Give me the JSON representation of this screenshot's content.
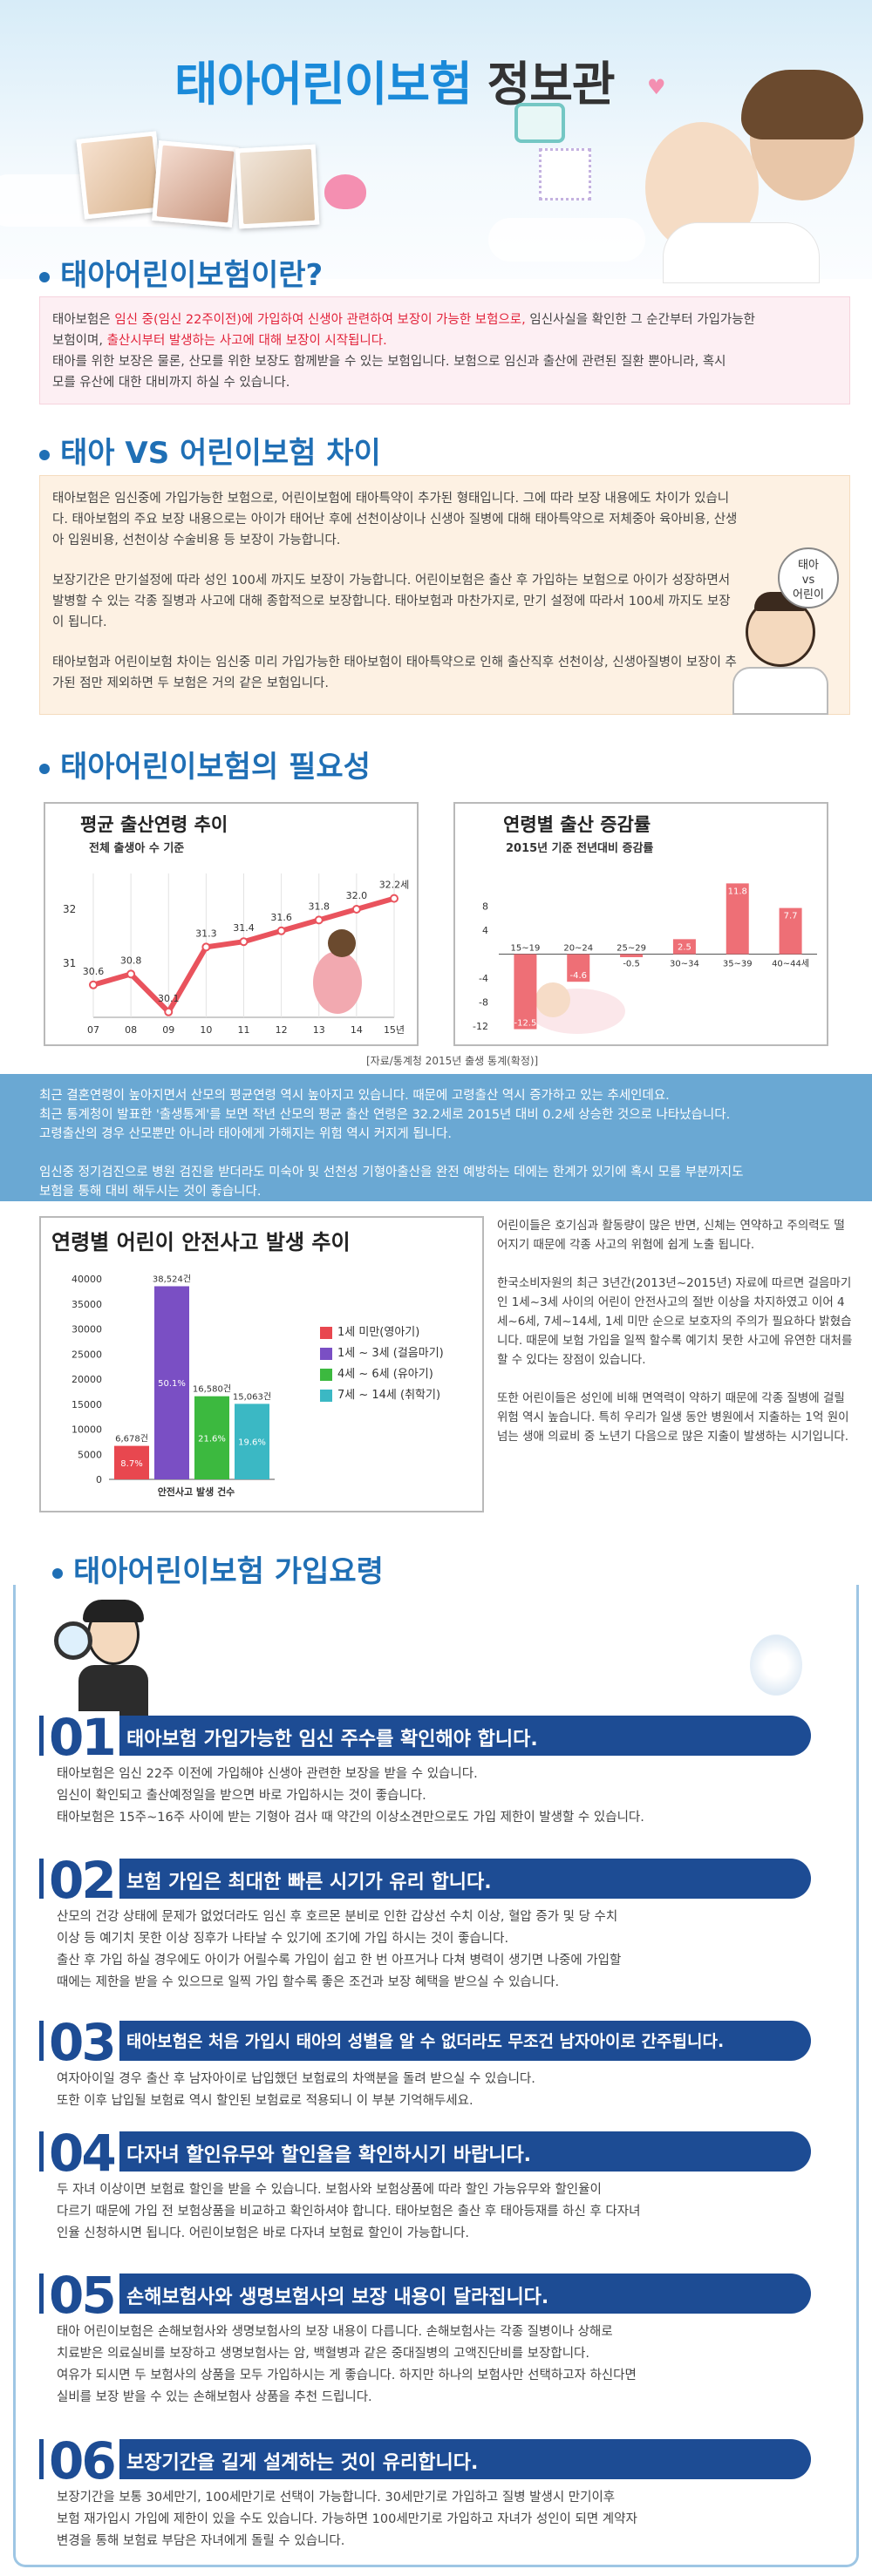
{
  "header": {
    "title_main": "태아어린이보험",
    "title_tail": " 정보관",
    "icon_tag": "baby-face-icon"
  },
  "sec1": {
    "title": "태아어린이보험이란?",
    "p1_a": "태아보험은 ",
    "p1_red1": "임신 중(임신 22주이전)에 가입하여 신생아 관련하여 보장이 가능한 보험으로,",
    "p1_b": " 임신사실을 확인한 그 순간부터 가입가능한",
    "p2_a": "보험이며, ",
    "p2_red": "출산시부터 발생하는 사고에 대해 보장이 시작됩니다.",
    "p3": "태아를 위한 보장은 물론, 산모를 위한 보장도 함께받을 수 있는 보험입니다. 보험으로 임신과 출산에 관련된 질환 뿐아니라, 혹시",
    "p4": "모를 유산에 대한 대비까지 하실 수 있습니다."
  },
  "sec2": {
    "title": "태아 VS 어린이보험 차이",
    "para1": "태아보험은 임신중에 가입가능한 보험으로, 어린이보험에 태아특약이 추가된 형태입니다. 그에 따라 보장 내용에도 차이가 있습니다. 태아보험의 주요 보장 내용으로는 아이가 태어난 후에 선천이상이나 신생아 질병에 대해 태아특약으로 저체중아 육아비용, 산생아 입원비용, 선천이상 수술비용 등 보장이 가능합니다.",
    "para2": "보장기간은 만기설정에 따라 성인 100세 까지도 보장이 가능합니다. 어린이보험은 출산 후 가입하는 보험으로 아이가 성장하면서 발병할 수 있는 각종 질병과 사고에 대해 종합적으로 보장합니다. 태아보험과 마찬가지로, 만기 설정에 따라서 100세 까지도 보장이 됩니다.",
    "para3": "태아보험과 어린이보험 차이는 임신중 미리 가입가능한 태아보험이 태아특약으로 인해 출산직후 선천이상, 신생아질병이 보장이 추가된 점만 제외하면 두 보험은 거의 같은 보험입니다.",
    "bubble_l1": "태아",
    "bubble_l2": "vs",
    "bubble_l3": "어린이"
  },
  "sec3": {
    "title": "태아어린이보험의 필요성",
    "source": "[자료/통계청 2015년 출생 통계(확정)]",
    "band_l1": "최근 결혼연령이 높아지면서 산모의 평균연령 역시 높아지고 있습니다. 때문에 고령출산 역시 증가하고 있는 추세인데요.",
    "band_l2": "최근 통계청이 발표한 '출생통계'를 보면 작년 산모의 평균 출산 연령은 32.2세로 2015년 대비 0.2세 상승한 것으로 나타났습니다.",
    "band_l3": "고령출산의 경우 산모뿐만 아니라 태아에게 가해지는 위험 역시 커지게 됩니다.",
    "band_l4": "임신중 정기검진으로 병원 검진을 받더라도 미숙아 및 선천성 기형아출산을 완전 예방하는 데에는 한계가 있기에 혹시 모를 부분까지도",
    "band_l5": "보험을 통해 대비 해두시는 것이 좋습니다.",
    "side_p1": "어린이들은 호기심과 활동량이 많은 반면, 신체는 연약하고 주의력도 떨어지기 때문에 각종 사고의 위험에 쉽게 노출 됩니다.",
    "side_p2": "한국소비자원의 최근 3년간(2013년~2015년) 자료에 따르면 걸음마기인 1세~3세 사이의 어린이 안전사고의 절반 이상을 차지하였고 이어 4세~6세, 7세~14세, 1세 미만 순으로 보호자의 주의가 필요하다 밝혔습니다. 때문에 보험 가입을 일찍 할수록 예기치 못한 사고에 유연한 대처를 할 수 있다는 장점이 있습니다.",
    "side_p3": "또한 어린이들은 성인에 비해 면역력이 약하기 때문에 각종 질병에 걸릴 위험 역시 높습니다. 특히 우리가 일생 동안 병원에서 지출하는 1억 원이 넘는 생애 의료비 중 노년기 다음으로 많은 지출이 발생하는 시기입니다."
  },
  "chart_data": [
    {
      "type": "line",
      "title": "평균 출산연령 추이",
      "subtitle": "전체 출생아 수 기준",
      "x": [
        "07",
        "08",
        "09",
        "10",
        "11",
        "12",
        "13",
        "14",
        "15년"
      ],
      "values": [
        30.6,
        30.8,
        30.1,
        31.3,
        31.4,
        31.6,
        31.8,
        32.0,
        32.2
      ],
      "labels": [
        "30.6",
        "30.8",
        "30.1",
        "31.3",
        "31.4",
        "31.6",
        "31.8",
        "32.0",
        "32.2세"
      ],
      "yticks": [
        "32",
        "31"
      ],
      "ylim": [
        30,
        32.5
      ]
    },
    {
      "type": "bar",
      "title": "연령별 출산 증감률",
      "subtitle": "2015년 기준 전년대비 증감률",
      "categories": [
        "15~19",
        "20~24",
        "25~29",
        "30~34",
        "35~39",
        "40~44세"
      ],
      "values": [
        -12.5,
        -4.6,
        -0.5,
        2.5,
        11.8,
        7.7
      ],
      "labels": [
        "-12.5",
        "-4.6",
        "-0.5",
        "2.5",
        "11.8",
        "7.7"
      ],
      "yticks": [
        "8",
        "4",
        "-4",
        "-8",
        "-12"
      ],
      "ylim": [
        -13,
        12
      ]
    },
    {
      "type": "bar",
      "title": "연령별 어린이 안전사고 발생 추이",
      "xlabel": "안전사고 발생 건수",
      "categories": [
        "1세 미만(영아기)",
        "1세 ~ 3세 (걸음마기)",
        "4세 ~ 6세 (유아기)",
        "7세 ~ 14세 (취학기)"
      ],
      "values": [
        6678,
        38524,
        16580,
        15063
      ],
      "labels": [
        "6,678건",
        "38,524건",
        "16,580건",
        "15,063건"
      ],
      "shares": [
        "8.7%",
        "50.1%",
        "21.6%",
        "19.6%"
      ],
      "colors": [
        "#e8474f",
        "#7a4fc4",
        "#3cb93f",
        "#3bb8c4"
      ],
      "yticks": [
        "40000",
        "35000",
        "30000",
        "25000",
        "20000",
        "15000",
        "10000",
        "5000",
        "0"
      ],
      "ylim": [
        0,
        40000
      ]
    }
  ],
  "sec4": {
    "title": "태아어린이보험 가입요령",
    "steps": [
      {
        "num": "01",
        "title": "태아보험 가입가능한 임신 주수를 확인해야 합니다.",
        "l1": "태아보험은 임신 22주 이전에 가입해야 신생아 관련한 보장을 받을 수 있습니다.",
        "l2": "임신이 확인되고 출산예정일을 받으면 바로 가입하시는 것이 좋습니다.",
        "l3": "태아보험은 15주~16주 사이에 받는 기형아 검사 때 약간의 이상소견만으로도 가입 제한이 발생할 수 있습니다.",
        "l4": ""
      },
      {
        "num": "02",
        "title": "보험 가입은 최대한 빠른 시기가 유리 합니다.",
        "l1": "산모의 건강 상태에 문제가 없었더라도 임신 후 호르몬 분비로 인한 갑상선 수치 이상, 혈압 증가 및 당 수치",
        "l2": "이상 등 예기치 못한 이상 징후가 나타날 수 있기에 조기에 가입 하시는 것이 좋습니다.",
        "l3": "출산 후 가입 하실 경우에도 아이가 어릴수록 가입이 쉽고 한 번 아프거나 다쳐 병력이 생기면 나중에 가입할",
        "l4": "때에는 제한을 받을 수 있으므로 일찍 가입 할수록 좋은 조건과 보장 혜택을 받으실 수 있습니다."
      },
      {
        "num": "03",
        "title": "태아보험은 처음 가입시 태아의 성별을 알 수 없더라도 무조건 남자아이로 간주됩니다.",
        "l1": "여자아이일 경우 출산 후 남자아이로 납입했던 보험료의 차액분을 돌려 받으실 수 있습니다.",
        "l2": "또한 이후 납입될 보험료 역시 할인된 보험료로 적용되니 이 부분 기억해두세요.",
        "l3": "",
        "l4": ""
      },
      {
        "num": "04",
        "title": "다자녀 할인유무와 할인율을 확인하시기 바랍니다.",
        "l1": "두 자녀 이상이면 보험료 할인을 받을 수 있습니다. 보험사와 보험상품에 따라 할인 가능유무와 할인율이",
        "l2": "다르기 때문에 가입 전 보험상품을 비교하고 확인하셔야 합니다. 태아보험은 출산 후 태아등재를 하신 후 다자녀",
        "l3": "인율 신청하시면 됩니다. 어린이보험은 바로 다자녀 보험료 할인이 가능합니다.",
        "l4": ""
      },
      {
        "num": "05",
        "title": "손해보험사와 생명보험사의 보장 내용이 달라집니다.",
        "l1": "태아 어린이보험은 손해보험사와 생명보험사의 보장 내용이 다릅니다. 손해보험사는 각종 질병이나 상해로",
        "l2": "치료받은 의료실비를 보장하고 생명보험사는 암, 백혈병과 같은 중대질병의 고액진단비를 보장합니다.",
        "l3": "여유가 되시면 두 보험사의 상품을 모두 가입하시는 게 좋습니다. 하지만 하나의 보험사만 선택하고자 하신다면",
        "l4": "실비를 보장 받을 수 있는 손해보험사 상품을 추천 드립니다."
      },
      {
        "num": "06",
        "title": "보장기간을 길게 설계하는 것이 유리합니다.",
        "l1": "보장기간을 보통 30세만기, 100세만기로 선택이 가능합니다. 30세만기로 가입하고 질병 발생시 만기이후",
        "l2": "보험 재가입시 가입에 제한이 있을 수도 있습니다. 가능하면 100세만기로 가입하고 자녀가 성인이 되면 계약자",
        "l3": "변경을 통해 보험료 부담은 자녀에게 돌릴 수 있습니다.",
        "l4": ""
      }
    ]
  }
}
